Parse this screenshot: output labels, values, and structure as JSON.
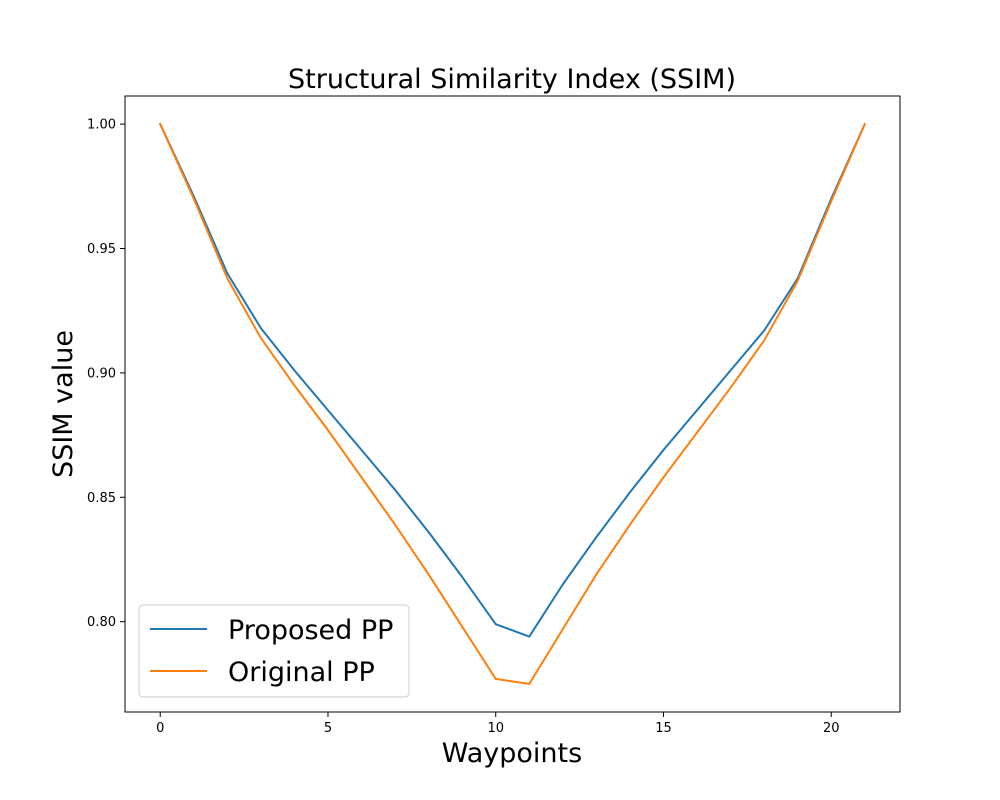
{
  "chart_data": {
    "type": "line",
    "title": "Structural Similarity Index (SSIM)",
    "xlabel": "Waypoints",
    "ylabel": "SSIM value",
    "xlim": [
      -1.05,
      22.05
    ],
    "ylim": [
      0.7637,
      1.0113
    ],
    "x_ticks": [
      0,
      5,
      10,
      15,
      20
    ],
    "y_ticks": [
      0.8,
      0.85,
      0.9,
      0.95,
      1.0
    ],
    "x_tick_labels": [
      "0",
      "5",
      "10",
      "15",
      "20"
    ],
    "y_tick_labels": [
      "0.80",
      "0.85",
      "0.90",
      "0.95",
      "1.00"
    ],
    "grid": false,
    "legend_position": "lower-left",
    "x": [
      0,
      1,
      2,
      3,
      4,
      5,
      6,
      7,
      8,
      9,
      10,
      11,
      12,
      13,
      14,
      15,
      16,
      17,
      18,
      19,
      20,
      21
    ],
    "series": [
      {
        "name": "Proposed PP",
        "color": "#1f77b4",
        "values": [
          1.0,
          0.971,
          0.94,
          0.918,
          0.901,
          0.885,
          0.869,
          0.853,
          0.836,
          0.818,
          0.799,
          0.794,
          0.815,
          0.834,
          0.852,
          0.869,
          0.885,
          0.901,
          0.917,
          0.938,
          0.97,
          1.0
        ]
      },
      {
        "name": "Original PP",
        "color": "#ff7f0e",
        "values": [
          1.0,
          0.97,
          0.938,
          0.914,
          0.895,
          0.877,
          0.858,
          0.839,
          0.819,
          0.798,
          0.777,
          0.775,
          0.797,
          0.819,
          0.839,
          0.858,
          0.876,
          0.894,
          0.913,
          0.937,
          0.969,
          1.0
        ]
      }
    ]
  }
}
